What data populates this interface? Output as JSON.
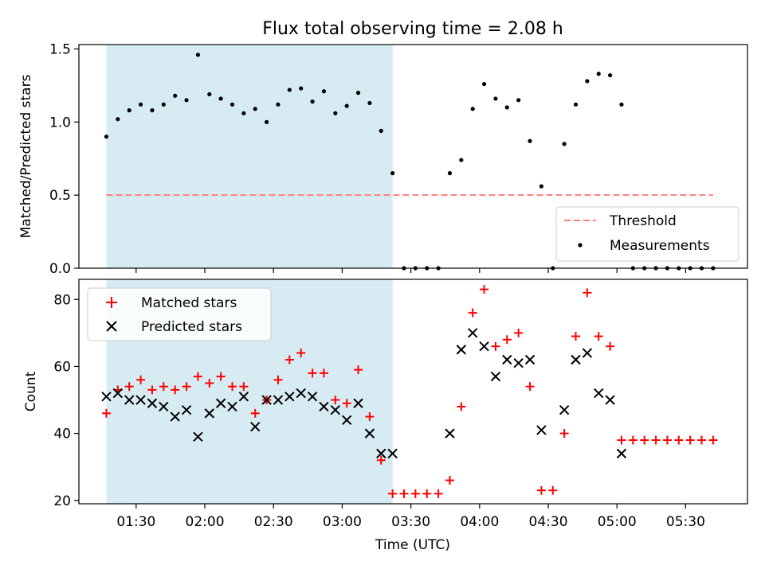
{
  "chart_data": {
    "type": "scatter",
    "title": "Flux total observing time = 2.08 h",
    "xlabel": "Time (UTC)",
    "x_ticks": [
      "01:30",
      "02:00",
      "02:30",
      "03:00",
      "03:30",
      "04:00",
      "04:30",
      "05:00",
      "05:30"
    ],
    "x_tick_hours": [
      1.5,
      2.0,
      2.5,
      3.0,
      3.5,
      4.0,
      4.5,
      5.0,
      5.5
    ],
    "x_range": [
      "01:05",
      "05:57"
    ],
    "shaded_interval": [
      "01:17",
      "03:22"
    ],
    "shade_color": "#add8e6",
    "times": [
      "01:17",
      "01:22",
      "01:27",
      "01:32",
      "01:37",
      "01:42",
      "01:47",
      "01:52",
      "01:57",
      "02:02",
      "02:07",
      "02:12",
      "02:17",
      "02:22",
      "02:27",
      "02:32",
      "02:37",
      "02:42",
      "02:47",
      "02:52",
      "02:57",
      "03:02",
      "03:07",
      "03:12",
      "03:17",
      "03:22",
      "03:27",
      "03:32",
      "03:37",
      "03:42",
      "03:47",
      "03:52",
      "03:57",
      "04:02",
      "04:07",
      "04:12",
      "04:17",
      "04:22",
      "04:27",
      "04:32",
      "04:37",
      "04:42",
      "04:47",
      "04:52",
      "04:57",
      "05:02",
      "05:07",
      "05:12",
      "05:17",
      "05:22",
      "05:27",
      "05:32",
      "05:37",
      "05:42"
    ],
    "panels": [
      {
        "ylabel": "Matched/Predicted stars",
        "ylim": [
          0.0,
          1.53
        ],
        "yticks": [
          "0.0",
          "0.5",
          "1.0",
          "1.5"
        ],
        "ytick_values": [
          0.0,
          0.5,
          1.0,
          1.5
        ],
        "threshold": 0.5,
        "threshold_color": "#ff7f7f",
        "legend_position": "lower right",
        "legend": [
          "Threshold",
          "Measurements"
        ],
        "series": [
          {
            "name": "Measurements",
            "marker": "dot",
            "color": "#000000",
            "values": [
              0.9,
              1.02,
              1.08,
              1.12,
              1.08,
              1.12,
              1.18,
              1.15,
              1.46,
              1.19,
              1.16,
              1.12,
              1.06,
              1.09,
              1.0,
              1.12,
              1.22,
              1.23,
              1.14,
              1.21,
              1.06,
              1.11,
              1.2,
              1.13,
              0.94,
              0.65,
              0.0,
              0.0,
              0.0,
              0.0,
              0.65,
              0.74,
              1.09,
              1.26,
              1.16,
              1.1,
              1.15,
              0.87,
              0.56,
              0.0,
              0.85,
              1.12,
              1.28,
              1.33,
              1.32,
              1.12,
              0.0,
              0.0,
              0.0,
              0.0,
              0.0,
              0.0,
              0.0,
              0.0
            ]
          }
        ]
      },
      {
        "ylabel": "Count",
        "ylim": [
          19,
          86
        ],
        "yticks": [
          "20",
          "40",
          "60",
          "80"
        ],
        "ytick_values": [
          20,
          40,
          60,
          80
        ],
        "legend_position": "upper left",
        "legend": [
          "Matched stars",
          "Predicted stars"
        ],
        "series": [
          {
            "name": "Matched stars",
            "marker": "plus",
            "color": "#ff0000",
            "values": [
              46,
              53,
              54,
              56,
              53,
              54,
              53,
              54,
              57,
              55,
              57,
              54,
              54,
              46,
              50,
              56,
              62,
              64,
              58,
              58,
              50,
              49,
              59,
              45,
              32,
              22,
              22,
              22,
              22,
              22,
              26,
              48,
              76,
              83,
              66,
              68,
              70,
              54,
              23,
              23,
              40,
              69,
              82,
              69,
              66,
              38,
              38,
              38,
              38,
              38,
              38,
              38,
              38,
              38
            ]
          },
          {
            "name": "Predicted stars",
            "marker": "x",
            "color": "#000000",
            "values": [
              51,
              52,
              50,
              50,
              49,
              48,
              45,
              47,
              39,
              46,
              49,
              48,
              51,
              42,
              50,
              50,
              51,
              52,
              51,
              48,
              47,
              44,
              49,
              40,
              34,
              34,
              null,
              null,
              null,
              null,
              40,
              65,
              70,
              66,
              57,
              62,
              61,
              62,
              41,
              null,
              47,
              62,
              64,
              52,
              50,
              34,
              null,
              null,
              null,
              null,
              null,
              null,
              null,
              null
            ]
          }
        ]
      }
    ]
  }
}
